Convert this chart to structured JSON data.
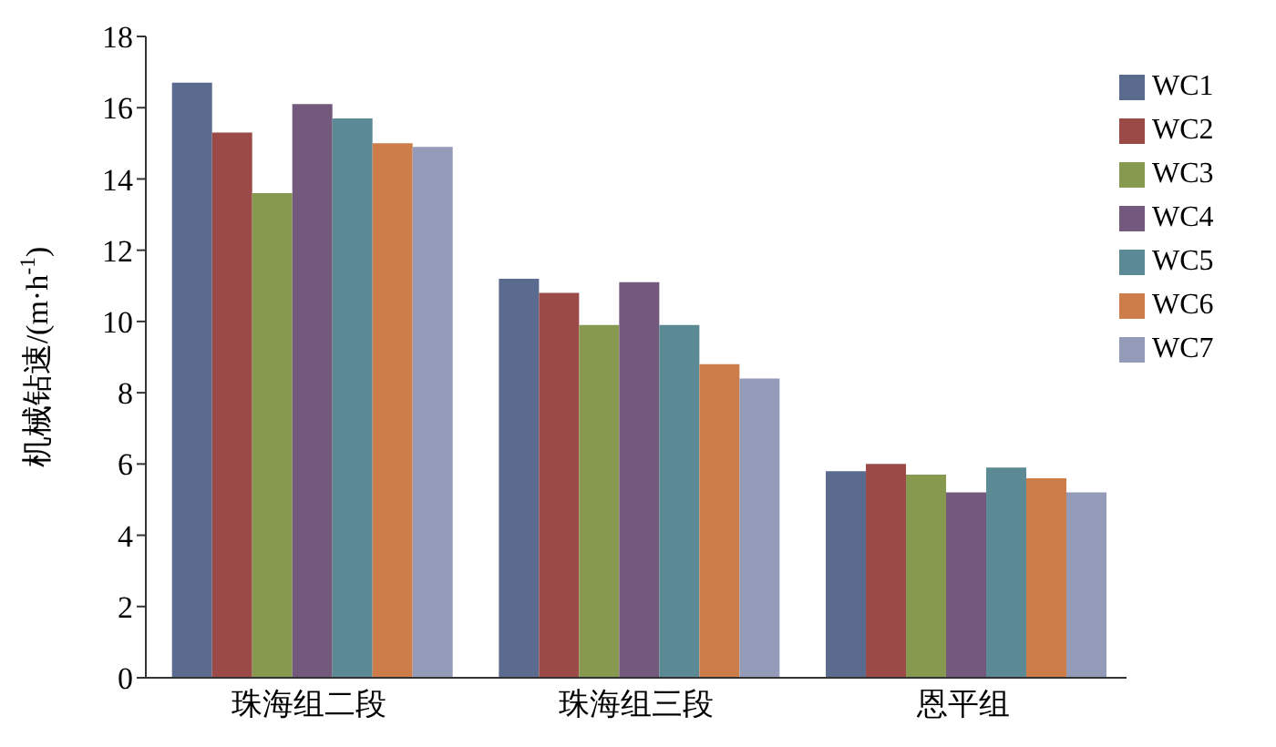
{
  "chart_data": {
    "type": "bar",
    "ylabel": "机械钻速/(m·h$^{-1}$)",
    "categories": [
      "珠海组二段",
      "珠海组三段",
      "恩平组"
    ],
    "series": [
      {
        "name": "WC1",
        "color": "#5b6a8f",
        "values": [
          16.7,
          11.2,
          5.8
        ]
      },
      {
        "name": "WC2",
        "color": "#9c4a47",
        "values": [
          15.3,
          10.8,
          6.0
        ]
      },
      {
        "name": "WC3",
        "color": "#87994f",
        "values": [
          13.6,
          9.9,
          5.7
        ]
      },
      {
        "name": "WC4",
        "color": "#735a7c",
        "values": [
          16.1,
          11.1,
          5.2
        ]
      },
      {
        "name": "WC5",
        "color": "#5b8a94",
        "values": [
          15.7,
          9.9,
          5.9
        ]
      },
      {
        "name": "WC6",
        "color": "#cc7d4a",
        "values": [
          15.0,
          8.8,
          5.6
        ]
      },
      {
        "name": "WC7",
        "color": "#939bb8",
        "values": [
          14.9,
          8.4,
          5.2
        ]
      }
    ],
    "ylim": [
      0,
      18
    ],
    "yticks": [
      0,
      2,
      4,
      6,
      8,
      10,
      12,
      14,
      16,
      18
    ],
    "grid": false,
    "legend": "top right"
  }
}
